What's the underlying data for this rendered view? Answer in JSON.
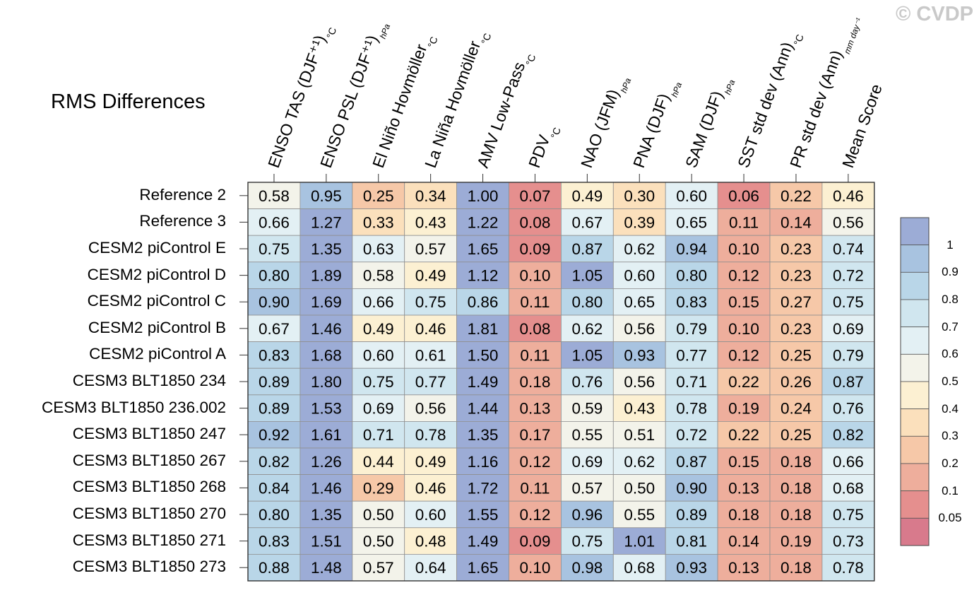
{
  "title": "RMS Differences",
  "watermark": "© CVDP",
  "columns": [
    {
      "name": "ENSO TAS (DJF⁺¹)",
      "unit": "°C"
    },
    {
      "name": "ENSO PSL (DJF⁺¹)",
      "unit": "hPa"
    },
    {
      "name": "El Niño Hovmöller",
      "unit": "°C"
    },
    {
      "name": "La Niña Hovmöller",
      "unit": "°C"
    },
    {
      "name": "AMV Low-Pass",
      "unit": "°C"
    },
    {
      "name": "PDV",
      "unit": "°C"
    },
    {
      "name": "NAO (JFM)",
      "unit": "hPa"
    },
    {
      "name": "PNA (DJF)",
      "unit": "hPa"
    },
    {
      "name": "SAM (DJF)",
      "unit": "hPa"
    },
    {
      "name": "SST std dev (Ann)",
      "unit": "°C"
    },
    {
      "name": "PR std dev (Ann)",
      "unit": "mm day⁻¹"
    },
    {
      "name": "Mean Score",
      "unit": ""
    }
  ],
  "chart_data": {
    "type": "heatmap",
    "title": "RMS Differences",
    "rows": [
      "Reference 2",
      "Reference 3",
      "CESM2 piControl E",
      "CESM2 piControl D",
      "CESM2 piControl C",
      "CESM2 piControl B",
      "CESM2 piControl A",
      "CESM3 BLT1850 234",
      "CESM3 BLT1850 236.002",
      "CESM3 BLT1850 247",
      "CESM3 BLT1850 267",
      "CESM3 BLT1850 268",
      "CESM3 BLT1850 270",
      "CESM3 BLT1850 271",
      "CESM3 BLT1850 273"
    ],
    "columns": [
      "ENSO TAS (DJF⁺¹)",
      "ENSO PSL (DJF⁺¹)",
      "El Niño Hovmöller",
      "La Niña Hovmöller",
      "AMV Low-Pass",
      "PDV",
      "NAO (JFM)",
      "PNA (DJF)",
      "SAM (DJF)",
      "SST std dev (Ann)",
      "PR std dev (Ann)",
      "Mean Score"
    ],
    "values": [
      [
        "0.58",
        "0.95",
        "0.25",
        "0.34",
        "1.00",
        "0.07",
        "0.49",
        "0.30",
        "0.60",
        "0.06",
        "0.22",
        "0.46"
      ],
      [
        "0.66",
        "1.27",
        "0.33",
        "0.43",
        "1.22",
        "0.08",
        "0.67",
        "0.39",
        "0.65",
        "0.11",
        "0.14",
        "0.56"
      ],
      [
        "0.75",
        "1.35",
        "0.63",
        "0.57",
        "1.65",
        "0.09",
        "0.87",
        "0.62",
        "0.94",
        "0.10",
        "0.23",
        "0.74"
      ],
      [
        "0.80",
        "1.89",
        "0.58",
        "0.49",
        "1.12",
        "0.10",
        "1.05",
        "0.60",
        "0.80",
        "0.12",
        "0.23",
        "0.72"
      ],
      [
        "0.90",
        "1.69",
        "0.66",
        "0.75",
        "0.86",
        "0.11",
        "0.80",
        "0.65",
        "0.83",
        "0.15",
        "0.27",
        "0.75"
      ],
      [
        "0.67",
        "1.46",
        "0.49",
        "0.46",
        "1.81",
        "0.08",
        "0.62",
        "0.56",
        "0.79",
        "0.10",
        "0.23",
        "0.69"
      ],
      [
        "0.83",
        "1.68",
        "0.60",
        "0.61",
        "1.50",
        "0.11",
        "1.05",
        "0.93",
        "0.77",
        "0.12",
        "0.25",
        "0.79"
      ],
      [
        "0.89",
        "1.80",
        "0.75",
        "0.77",
        "1.49",
        "0.18",
        "0.76",
        "0.56",
        "0.71",
        "0.22",
        "0.26",
        "0.87"
      ],
      [
        "0.89",
        "1.53",
        "0.69",
        "0.56",
        "1.44",
        "0.13",
        "0.59",
        "0.43",
        "0.78",
        "0.19",
        "0.24",
        "0.76"
      ],
      [
        "0.92",
        "1.61",
        "0.71",
        "0.78",
        "1.35",
        "0.17",
        "0.55",
        "0.51",
        "0.72",
        "0.22",
        "0.25",
        "0.82"
      ],
      [
        "0.82",
        "1.26",
        "0.44",
        "0.49",
        "1.16",
        "0.12",
        "0.69",
        "0.62",
        "0.87",
        "0.15",
        "0.18",
        "0.66"
      ],
      [
        "0.84",
        "1.46",
        "0.29",
        "0.46",
        "1.72",
        "0.11",
        "0.57",
        "0.50",
        "0.90",
        "0.13",
        "0.18",
        "0.68"
      ],
      [
        "0.80",
        "1.35",
        "0.50",
        "0.60",
        "1.55",
        "0.12",
        "0.96",
        "0.55",
        "0.89",
        "0.18",
        "0.18",
        "0.75"
      ],
      [
        "0.83",
        "1.51",
        "0.50",
        "0.48",
        "1.49",
        "0.09",
        "0.75",
        "1.01",
        "0.81",
        "0.14",
        "0.19",
        "0.73"
      ],
      [
        "0.88",
        "1.48",
        "0.57",
        "0.64",
        "1.65",
        "0.10",
        "0.98",
        "0.68",
        "0.93",
        "0.13",
        "0.18",
        "0.78"
      ]
    ],
    "colorbar": {
      "labels": [
        "1",
        "0.9",
        "0.8",
        "0.7",
        "0.6",
        "0.5",
        "0.4",
        "0.3",
        "0.2",
        "0.1",
        "0.05"
      ],
      "thresholds": [
        0.05,
        0.1,
        0.2,
        0.3,
        0.4,
        0.5,
        0.6,
        0.7,
        0.8,
        0.9,
        1.0
      ],
      "colors": [
        "#d87a8c",
        "#e58f8e",
        "#eeae9c",
        "#f6c8a8",
        "#fbe0bc",
        "#fcf0d2",
        "#f3f3ea",
        "#e3f0f4",
        "#d0e6ef",
        "#b9d6e8",
        "#a8c3e0",
        "#9cacd6"
      ],
      "placement": "right"
    }
  }
}
